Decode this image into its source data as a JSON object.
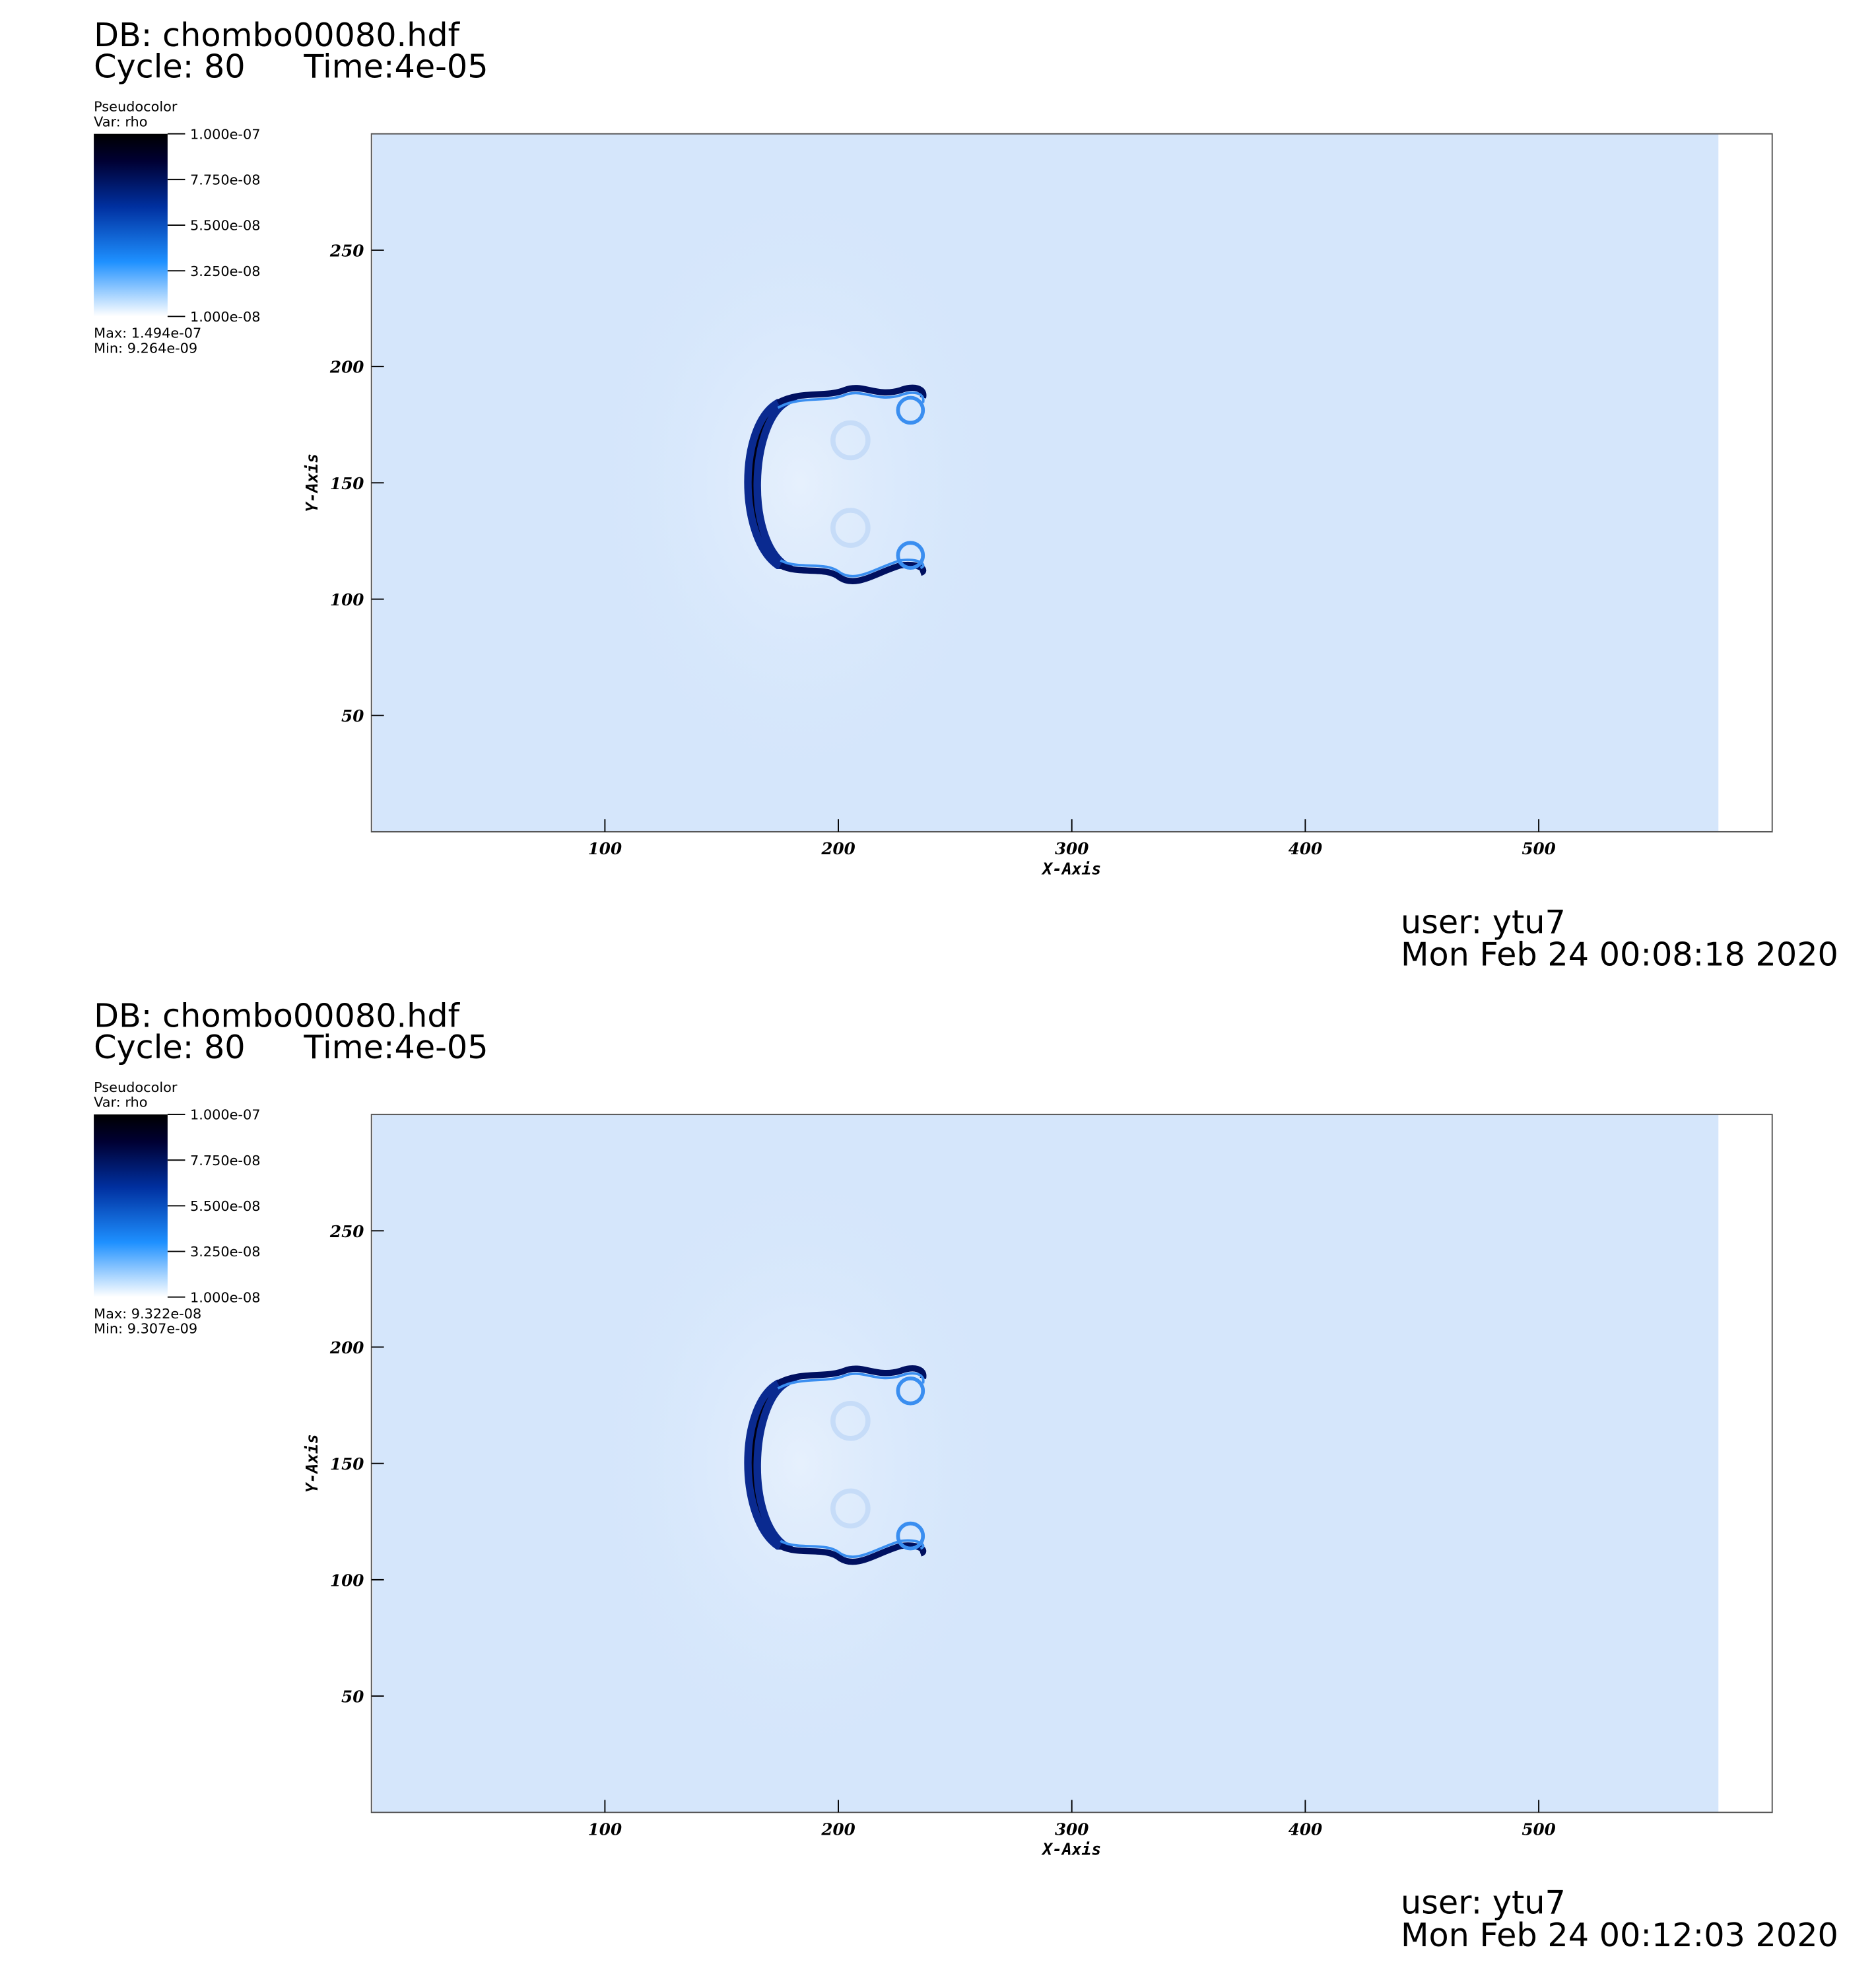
{
  "chart_data": [
    {
      "type": "pseudocolor",
      "db": "DB: chombo00080.hdf",
      "cycle": "Cycle: 80",
      "time": "Time:4e-05",
      "legend_title": "Pseudocolor",
      "variable": "Var: rho",
      "clim": [
        1e-08,
        1e-07
      ],
      "cticks": [
        {
          "value": 1e-07,
          "label": "1.000e-07"
        },
        {
          "value": 7.75e-08,
          "label": "7.750e-08"
        },
        {
          "value": 5.5e-08,
          "label": "5.500e-08"
        },
        {
          "value": 3.25e-08,
          "label": "3.250e-08"
        },
        {
          "value": 1e-08,
          "label": "1.000e-08"
        }
      ],
      "max": "Max:  1.494e-07",
      "min": "Min:  9.264e-09",
      "xlabel": "X-Axis",
      "ylabel": "Y-Axis",
      "xlim": [
        0,
        600
      ],
      "ylim": [
        0,
        300
      ],
      "xticks": [
        100,
        200,
        300,
        400,
        500
      ],
      "yticks": [
        50,
        100,
        150,
        200,
        250
      ],
      "user": "user: ytu7",
      "date": "Mon Feb 24 00:08:18 2020"
    },
    {
      "type": "pseudocolor",
      "db": "DB: chombo00080.hdf",
      "cycle": "Cycle: 80",
      "time": "Time:4e-05",
      "legend_title": "Pseudocolor",
      "variable": "Var: rho",
      "clim": [
        1e-08,
        1e-07
      ],
      "cticks": [
        {
          "value": 1e-07,
          "label": "1.000e-07"
        },
        {
          "value": 7.75e-08,
          "label": "7.750e-08"
        },
        {
          "value": 5.5e-08,
          "label": "5.500e-08"
        },
        {
          "value": 3.25e-08,
          "label": "3.250e-08"
        },
        {
          "value": 1e-08,
          "label": "1.000e-08"
        }
      ],
      "max": "Max:  9.322e-08",
      "min": "Min:  9.307e-09",
      "xlabel": "X-Axis",
      "ylabel": "Y-Axis",
      "xlim": [
        0,
        600
      ],
      "ylim": [
        0,
        300
      ],
      "xticks": [
        100,
        200,
        300,
        400,
        500
      ],
      "yticks": [
        50,
        100,
        150,
        200,
        250
      ],
      "user": "user: ytu7",
      "date": "Mon Feb 24 00:12:03 2020"
    }
  ]
}
